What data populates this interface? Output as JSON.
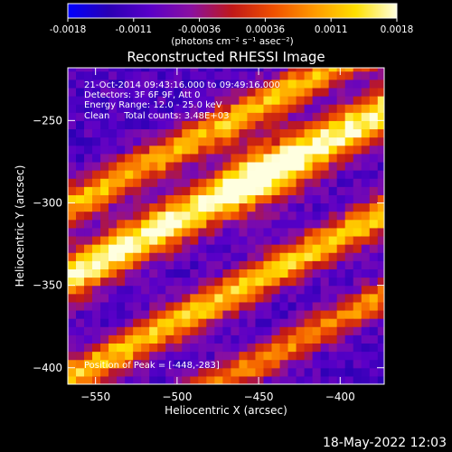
{
  "colors": {
    "background": "#000000",
    "text": "#ffffff",
    "colormap": [
      "#0000ff",
      "#2a00b4",
      "#5a00c8",
      "#8a10a0",
      "#c01818",
      "#f05000",
      "#ff9a00",
      "#ffe000",
      "#ffffe0"
    ]
  },
  "colorbar": {
    "tick_labels": [
      "-0.0018",
      "-0.0011",
      "-0.00036",
      "0.00036",
      "0.0011",
      "0.0018"
    ],
    "unit_label": "(photons cm⁻² s⁻¹ asec⁻²)",
    "range": [
      -0.0018,
      0.0018
    ]
  },
  "chart_data": {
    "type": "heatmap",
    "title": "Reconstructed RHESSI Image",
    "xlabel": "Heliocentric X (arcsec)",
    "ylabel": "Heliocentric Y (arcsec)",
    "xlim": [
      -567,
      -373
    ],
    "ylim": [
      -410,
      -218
    ],
    "x_ticks": [
      -550,
      -500,
      -450,
      -400
    ],
    "y_ticks": [
      -250,
      -300,
      -350,
      -400
    ],
    "x_tick_labels": [
      "−550",
      "−500",
      "−450",
      "−400"
    ],
    "y_tick_labels": [
      "−250",
      "−300",
      "−350",
      "−400"
    ],
    "annotations": [
      "21-Oct-2014 09:43:16.000 to 09:49:16.000",
      "Detectors: 3F 6F 9F, Att 0",
      "Energy Range: 12.0 - 25.0 keV",
      "Clean     Total counts: 3.48E+03"
    ],
    "peak_label": "Position of Peak = [-448,-283]",
    "peak": [
      -448,
      -283
    ],
    "stripes": [
      {
        "intercept": -240,
        "sigma": 9,
        "amplitude": 0.75
      },
      {
        "intercept": -283,
        "sigma": 11,
        "amplitude": 1.0
      },
      {
        "intercept": -345,
        "sigma": 9,
        "amplitude": 0.8
      },
      {
        "intercept": -395,
        "sigma": 8,
        "amplitude": 0.65
      }
    ],
    "stripe_slope": 0.52,
    "background_level": 0.22,
    "grid": false
  },
  "footer": {
    "timestamp": "18-May-2022 12:03"
  }
}
